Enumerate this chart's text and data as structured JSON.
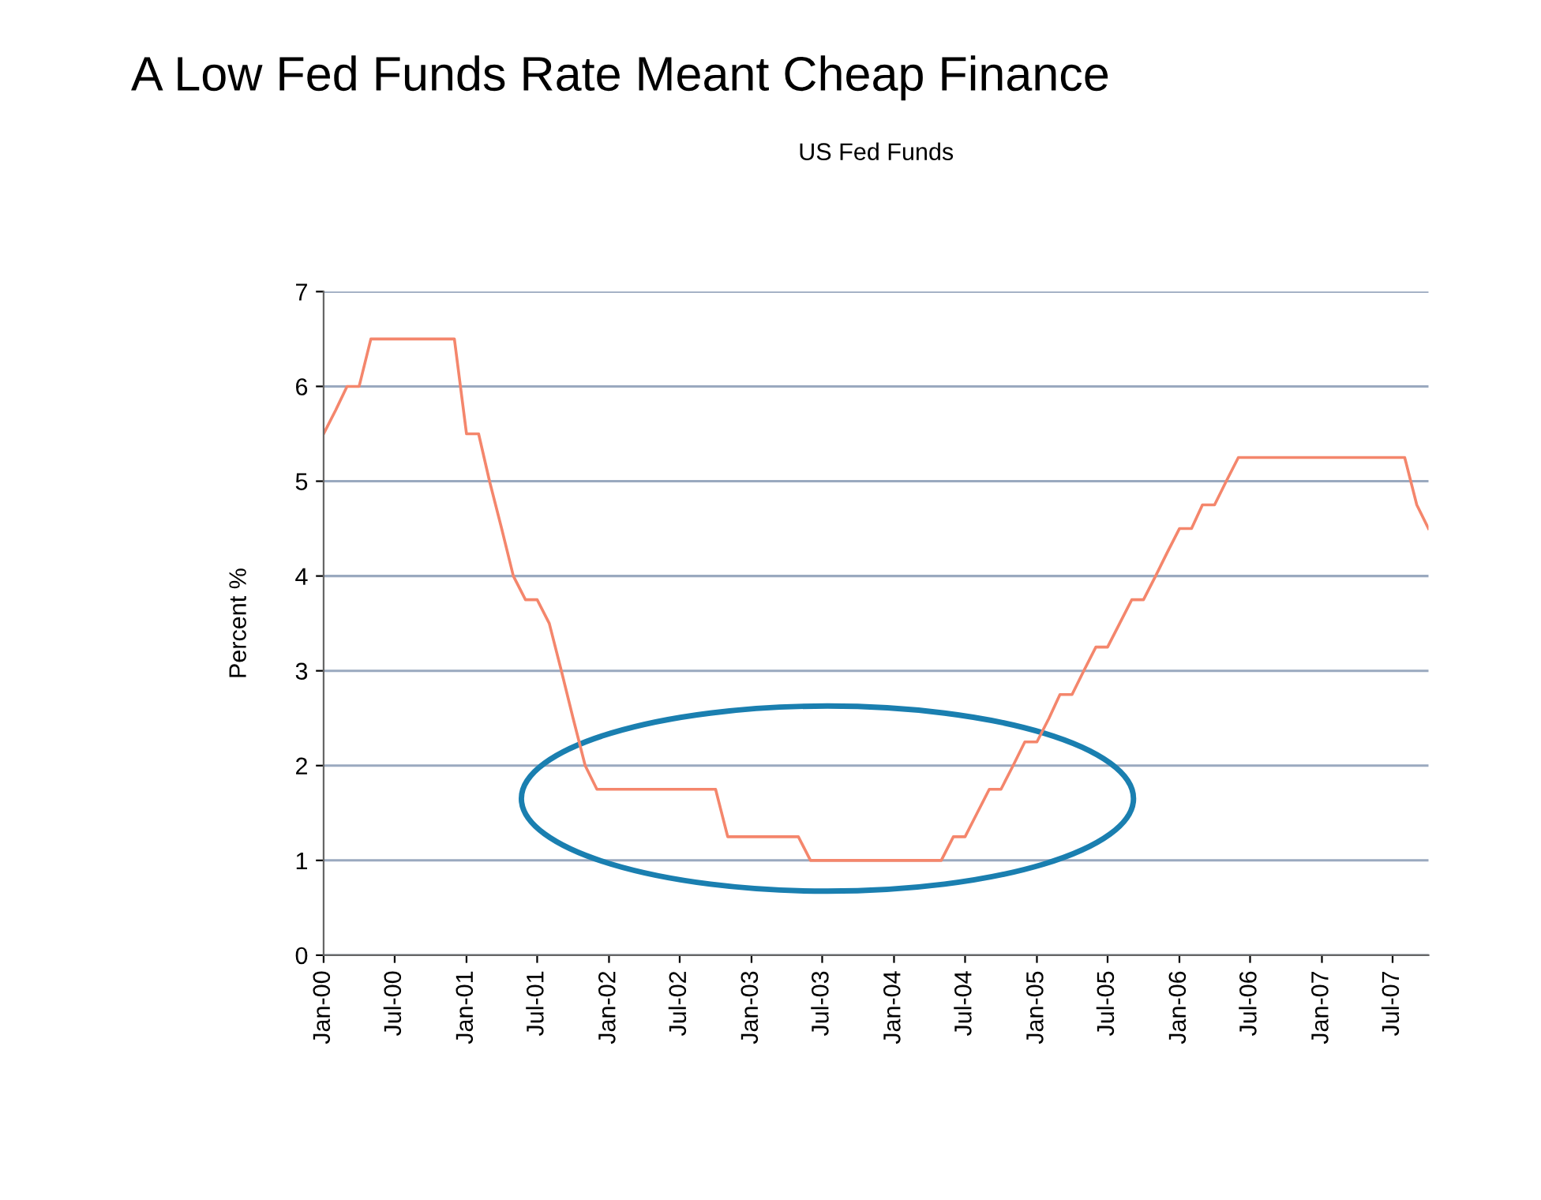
{
  "chart_data": {
    "type": "line",
    "title": "A Low Fed Funds Rate Meant Cheap Finance",
    "subtitle": "US Fed Funds",
    "ylabel": "Percent %",
    "x": [
      "2000-01",
      "2000-02",
      "2000-03",
      "2000-04",
      "2000-05",
      "2000-06",
      "2000-07",
      "2000-08",
      "2000-09",
      "2000-10",
      "2000-11",
      "2000-12",
      "2001-01",
      "2001-02",
      "2001-03",
      "2001-04",
      "2001-05",
      "2001-06",
      "2001-07",
      "2001-08",
      "2001-09",
      "2001-10",
      "2001-11",
      "2001-12",
      "2002-01",
      "2002-02",
      "2002-03",
      "2002-04",
      "2002-05",
      "2002-06",
      "2002-07",
      "2002-08",
      "2002-09",
      "2002-10",
      "2002-11",
      "2002-12",
      "2003-01",
      "2003-02",
      "2003-03",
      "2003-04",
      "2003-05",
      "2003-06",
      "2003-07",
      "2003-08",
      "2003-09",
      "2003-10",
      "2003-11",
      "2003-12",
      "2004-01",
      "2004-02",
      "2004-03",
      "2004-04",
      "2004-05",
      "2004-06",
      "2004-07",
      "2004-08",
      "2004-09",
      "2004-10",
      "2004-11",
      "2004-12",
      "2005-01",
      "2005-02",
      "2005-03",
      "2005-04",
      "2005-05",
      "2005-06",
      "2005-07",
      "2005-08",
      "2005-09",
      "2005-10",
      "2005-11",
      "2005-12",
      "2006-01",
      "2006-02",
      "2006-03",
      "2006-04",
      "2006-05",
      "2006-06",
      "2006-07",
      "2006-08",
      "2006-09",
      "2006-10",
      "2006-11",
      "2006-12",
      "2007-01",
      "2007-02",
      "2007-03",
      "2007-04",
      "2007-05",
      "2007-06",
      "2007-07",
      "2007-08",
      "2007-09",
      "2007-10"
    ],
    "series": [
      {
        "color": "#f4866c",
        "values": [
          5.5,
          5.75,
          6.0,
          6.0,
          6.5,
          6.5,
          6.5,
          6.5,
          6.5,
          6.5,
          6.5,
          6.5,
          5.5,
          5.5,
          5.0,
          4.5,
          4.0,
          3.75,
          3.75,
          3.5,
          3.0,
          2.5,
          2.0,
          1.75,
          1.75,
          1.75,
          1.75,
          1.75,
          1.75,
          1.75,
          1.75,
          1.75,
          1.75,
          1.75,
          1.25,
          1.25,
          1.25,
          1.25,
          1.25,
          1.25,
          1.25,
          1.0,
          1.0,
          1.0,
          1.0,
          1.0,
          1.0,
          1.0,
          1.0,
          1.0,
          1.0,
          1.0,
          1.0,
          1.25,
          1.25,
          1.5,
          1.75,
          1.75,
          2.0,
          2.25,
          2.25,
          2.5,
          2.75,
          2.75,
          3.0,
          3.25,
          3.25,
          3.5,
          3.75,
          3.75,
          4.0,
          4.25,
          4.5,
          4.5,
          4.75,
          4.75,
          5.0,
          5.25,
          5.25,
          5.25,
          5.25,
          5.25,
          5.25,
          5.25,
          5.25,
          5.25,
          5.25,
          5.25,
          5.25,
          5.25,
          5.25,
          5.25,
          4.75,
          4.5
        ]
      }
    ],
    "xlim": [
      "2000-01",
      "2007-10"
    ],
    "xticks": [
      {
        "value": "2000-01",
        "label": "Jan-00"
      },
      {
        "value": "2000-07",
        "label": "Jul-00"
      },
      {
        "value": "2001-01",
        "label": "Jan-01"
      },
      {
        "value": "2001-07",
        "label": "Jul-01"
      },
      {
        "value": "2002-01",
        "label": "Jan-02"
      },
      {
        "value": "2002-07",
        "label": "Jul-02"
      },
      {
        "value": "2003-01",
        "label": "Jan-03"
      },
      {
        "value": "2003-07",
        "label": "Jul-03"
      },
      {
        "value": "2004-01",
        "label": "Jan-04"
      },
      {
        "value": "2004-07",
        "label": "Jul-04"
      },
      {
        "value": "2005-01",
        "label": "Jan-05"
      },
      {
        "value": "2005-07",
        "label": "Jul-05"
      },
      {
        "value": "2006-01",
        "label": "Jan-06"
      },
      {
        "value": "2006-07",
        "label": "Jul-06"
      },
      {
        "value": "2007-01",
        "label": "Jan-07"
      },
      {
        "value": "2007-07",
        "label": "Jul-07"
      }
    ],
    "ylim": [
      0,
      7
    ],
    "yticks": [
      0,
      1,
      2,
      3,
      4,
      5,
      6,
      7
    ],
    "grid": "y",
    "marker": "none",
    "line_style": "solid"
  }
}
